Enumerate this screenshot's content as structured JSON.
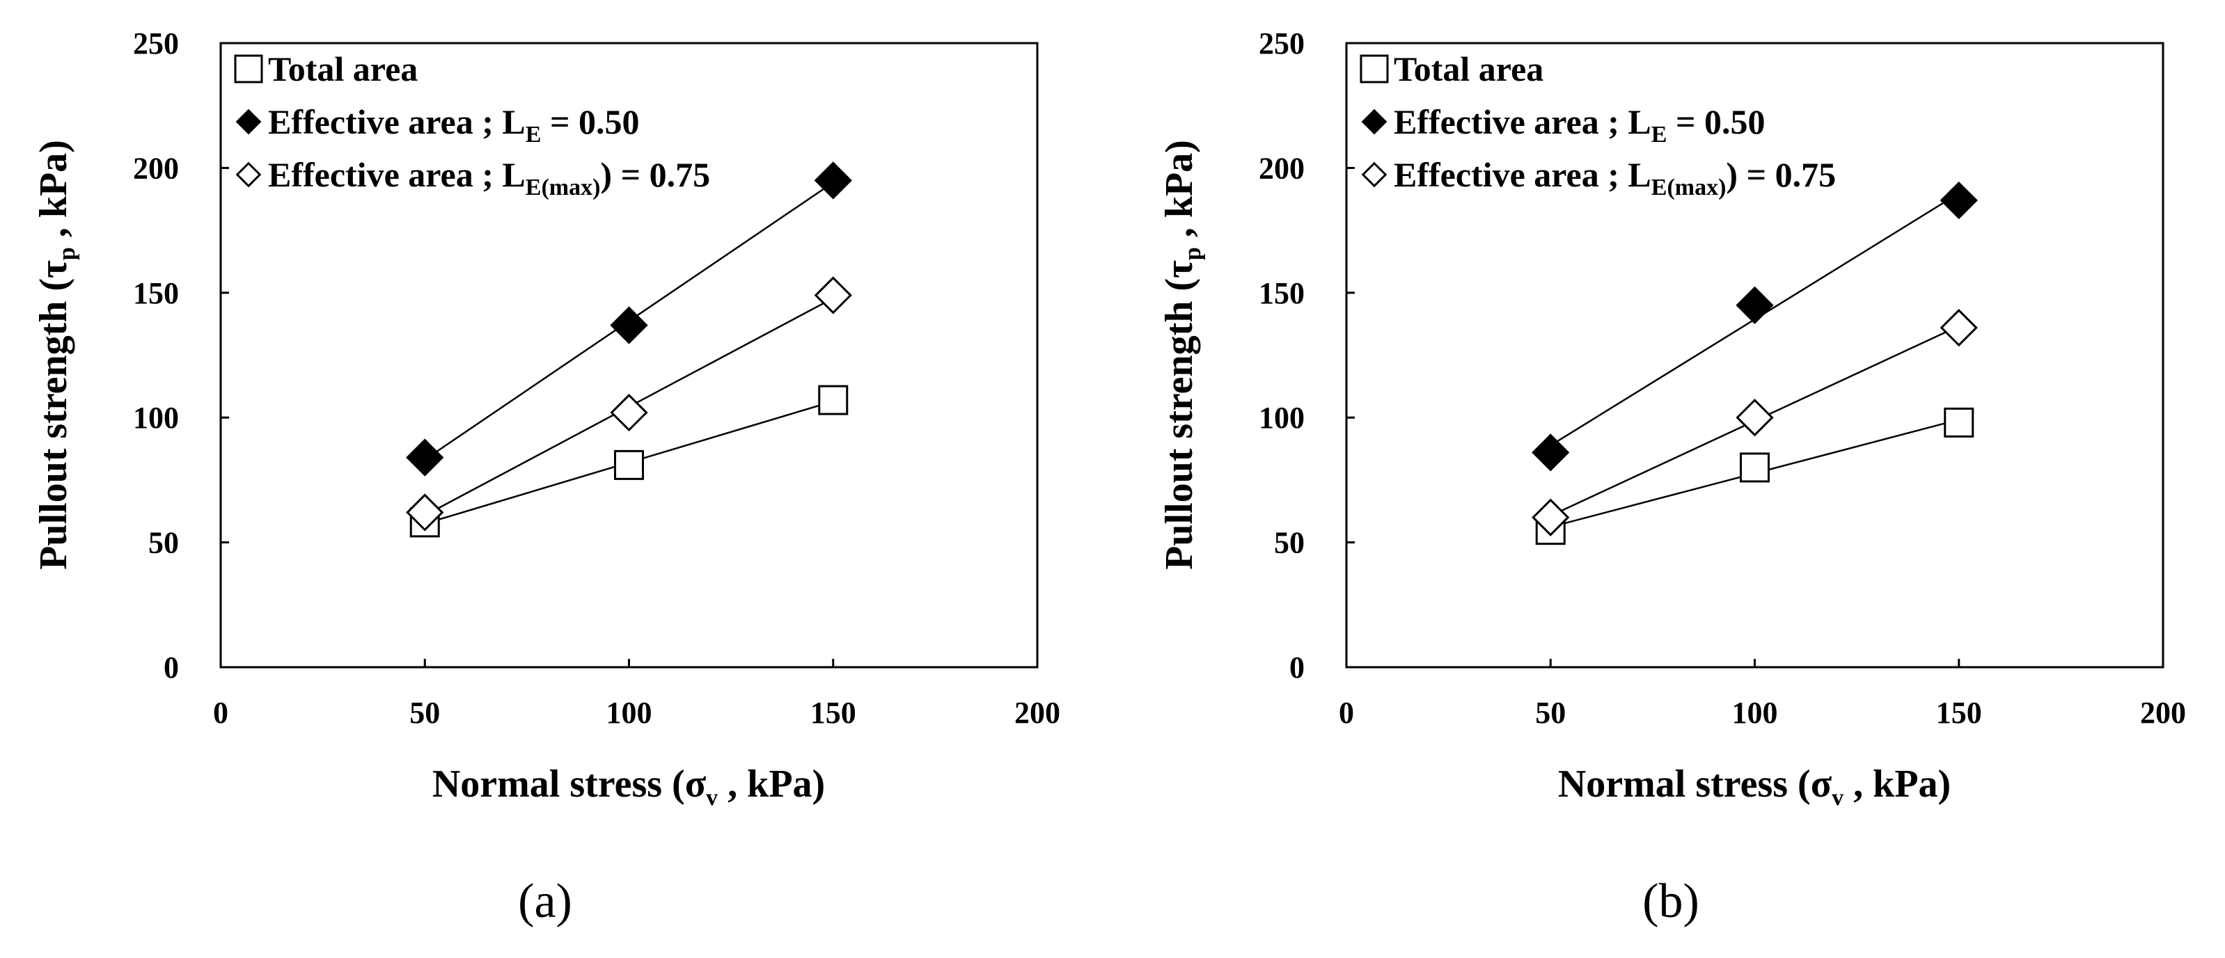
{
  "chart_data": [
    {
      "type": "scatter",
      "panel_label": "(a)",
      "xlabel": {
        "main": "Normal stress (σ",
        "sub": "v",
        "tail": " , kPa)"
      },
      "ylabel": {
        "main": "Pullout strength (τ",
        "sub": "p",
        "tail": " , kPa)"
      },
      "xlim": [
        0,
        200
      ],
      "ylim": [
        0,
        250
      ],
      "xticks": [
        "0",
        "50",
        "100",
        "150",
        "200"
      ],
      "yticks": [
        "0",
        "50",
        "100",
        "150",
        "200",
        "250"
      ],
      "legend_position": "top-left",
      "series": [
        {
          "name": "Total area",
          "label": {
            "main": "Total area",
            "sub": "",
            "tail": ""
          },
          "marker": "square-open",
          "x": [
            50,
            100,
            150
          ],
          "values": [
            58,
            81,
            107
          ]
        },
        {
          "name": "Effective area ; LE = 0.50",
          "label": {
            "main": "Effective area ; L",
            "sub": "E",
            "tail": " = 0.50"
          },
          "marker": "diamond-filled",
          "x": [
            50,
            100,
            150
          ],
          "values": [
            84,
            137,
            195
          ]
        },
        {
          "name": "Effective area ; LE(max) = 0.75",
          "label": {
            "main": "Effective area ; L",
            "sub": "E(max)",
            "tail": ") = 0.75"
          },
          "marker": "diamond-open",
          "x": [
            50,
            100,
            150
          ],
          "values": [
            62,
            102,
            149
          ]
        }
      ]
    },
    {
      "type": "scatter",
      "panel_label": "(b)",
      "xlabel": {
        "main": "Normal stress (σ",
        "sub": "v",
        "tail": " , kPa)"
      },
      "ylabel": {
        "main": "Pullout strength (τ",
        "sub": "p",
        "tail": " , kPa)"
      },
      "xlim": [
        0,
        200
      ],
      "ylim": [
        0,
        250
      ],
      "xticks": [
        "0",
        "50",
        "100",
        "150",
        "200"
      ],
      "yticks": [
        "0",
        "50",
        "100",
        "150",
        "200",
        "250"
      ],
      "legend_position": "top-left",
      "series": [
        {
          "name": "Total area",
          "label": {
            "main": "Total area",
            "sub": "",
            "tail": ""
          },
          "marker": "square-open",
          "x": [
            50,
            100,
            150
          ],
          "values": [
            55,
            80,
            98
          ]
        },
        {
          "name": "Effective area ; LE = 0.50",
          "label": {
            "main": "Effective area ; L",
            "sub": "E",
            "tail": " = 0.50"
          },
          "marker": "diamond-filled",
          "x": [
            50,
            100,
            150
          ],
          "values": [
            86,
            145,
            187
          ]
        },
        {
          "name": "Effective area ; LE(max) = 0.75",
          "label": {
            "main": "Effective area ; L",
            "sub": "E(max)",
            "tail": ") = 0.75"
          },
          "marker": "diamond-open",
          "x": [
            50,
            100,
            150
          ],
          "values": [
            60,
            100,
            136
          ]
        }
      ]
    }
  ]
}
